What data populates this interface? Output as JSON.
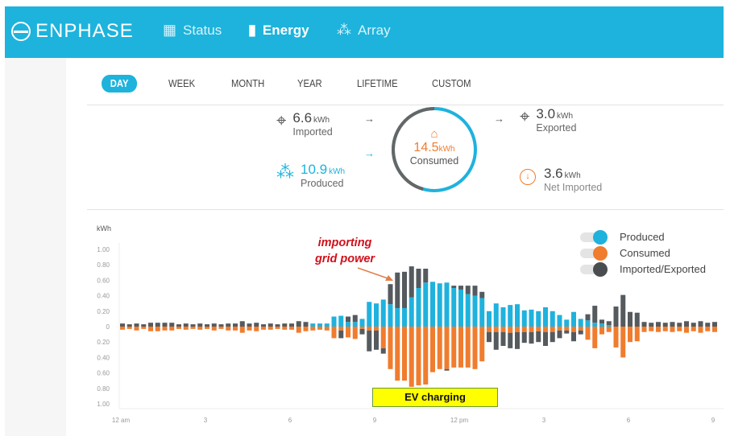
{
  "header": {
    "brand": "ENPHASE",
    "nav": [
      {
        "label": "Status",
        "icon": "grid-icon"
      },
      {
        "label": "Energy",
        "icon": "bar-chart-icon",
        "active": true
      },
      {
        "label": "Array",
        "icon": "panels-icon"
      }
    ]
  },
  "tabs": [
    {
      "label": "DAY",
      "active": true
    },
    {
      "label": "WEEK"
    },
    {
      "label": "MONTH"
    },
    {
      "label": "YEAR"
    },
    {
      "label": "LIFETIME"
    },
    {
      "label": "CUSTOM"
    }
  ],
  "summary": {
    "imported": {
      "value": "6.6",
      "unit": "kWh",
      "label": "Imported"
    },
    "produced": {
      "value": "10.9",
      "unit": "kWh",
      "label": "Produced"
    },
    "consumed": {
      "value": "14.5",
      "unit": "kWh",
      "label": "Consumed"
    },
    "exported": {
      "value": "3.0",
      "unit": "kWh",
      "label": "Exported"
    },
    "net": {
      "value": "3.6",
      "unit": "kWh",
      "label": "Net Imported"
    }
  },
  "colors": {
    "brand": "#1db3dc",
    "produced": "#1fb2dd",
    "consumed": "#f07c2e",
    "grid": "#555a5e",
    "annotation": "#d0101a",
    "highlight": "#ffff00"
  },
  "annotations": {
    "importing": "importing grid power",
    "ev": "EV charging"
  },
  "chart_data": {
    "type": "bar",
    "ylabel": "kWh",
    "ylim": [
      -1.0,
      1.0
    ],
    "y_ticks": [
      "1.00",
      "0.80",
      "0.60",
      "0.40",
      "0.20",
      "0",
      "0.20",
      "0.40",
      "0.60",
      "0.80",
      "1.00"
    ],
    "x_ticks": [
      "12 am",
      "3",
      "6",
      "9",
      "12 pm",
      "3",
      "6",
      "9"
    ],
    "interval": "15 min",
    "legend": {
      "placement": "top-right",
      "entries": [
        "Produced",
        "Consumed",
        "Imported/Exported"
      ]
    },
    "produced": [
      0,
      0,
      0,
      0,
      0,
      0,
      0,
      0,
      0,
      0,
      0,
      0,
      0,
      0,
      0,
      0,
      0,
      0,
      0,
      0,
      0,
      0,
      0,
      0,
      0,
      0,
      0,
      0.04,
      0.04,
      0.04,
      0.13,
      0.14,
      0.06,
      0.06,
      0.1,
      0.32,
      0.3,
      0.35,
      0.29,
      0.24,
      0.24,
      0.38,
      0.5,
      0.57,
      0.58,
      0.56,
      0.57,
      0.5,
      0.48,
      0.42,
      0.4,
      0.37,
      0.2,
      0.3,
      0.25,
      0.28,
      0.29,
      0.21,
      0.22,
      0.2,
      0.25,
      0.2,
      0.15,
      0.09,
      0.19,
      0.1,
      0.08,
      0.05,
      0.04,
      0.02,
      0,
      0,
      0,
      0,
      0,
      0,
      0,
      0,
      0,
      0,
      0,
      0,
      0,
      0,
      0
    ],
    "imported": [
      0.04,
      0.03,
      0.04,
      0.03,
      0.05,
      0.05,
      0.05,
      0.05,
      0.03,
      0.04,
      0.03,
      0.04,
      0.03,
      0.04,
      0.03,
      0.04,
      0.04,
      0.07,
      0.04,
      0.05,
      0.03,
      0.04,
      0.03,
      0.04,
      0.04,
      0.07,
      0.06,
      0,
      0,
      0,
      0,
      0,
      0.07,
      0.09,
      0,
      0,
      0,
      0,
      0.26,
      0.46,
      0.47,
      0.4,
      0.25,
      0.18,
      0,
      0,
      0,
      0.03,
      0.05,
      0.11,
      0.13,
      0.08,
      0,
      0,
      0,
      0,
      0,
      0,
      0,
      0,
      0,
      0,
      0,
      0,
      0,
      0,
      0.08,
      0.22,
      0.05,
      0.05,
      0.26,
      0.41,
      0.19,
      0.18,
      0.06,
      0.05,
      0.06,
      0.05,
      0.06,
      0.05,
      0.07,
      0.05,
      0.07,
      0.05,
      0.06
    ],
    "consumed": [
      0.04,
      0.03,
      0.05,
      0.03,
      0.06,
      0.06,
      0.05,
      0.05,
      0.03,
      0.04,
      0.03,
      0.04,
      0.03,
      0.05,
      0.03,
      0.05,
      0.05,
      0.08,
      0.05,
      0.06,
      0.04,
      0.04,
      0.03,
      0.04,
      0.04,
      0.08,
      0.06,
      0.05,
      0.04,
      0.05,
      0.15,
      0.05,
      0.14,
      0.16,
      0.03,
      0.05,
      0.05,
      0.28,
      0.55,
      0.7,
      0.7,
      0.78,
      0.76,
      0.75,
      0.59,
      0.55,
      0.55,
      0.53,
      0.53,
      0.53,
      0.55,
      0.45,
      0.07,
      0.07,
      0.07,
      0.08,
      0.07,
      0.07,
      0.07,
      0.06,
      0.07,
      0.07,
      0.05,
      0.05,
      0.07,
      0.05,
      0.17,
      0.28,
      0.1,
      0.07,
      0.27,
      0.4,
      0.2,
      0.19,
      0.07,
      0.06,
      0.07,
      0.06,
      0.07,
      0.06,
      0.08,
      0.06,
      0.08,
      0.06,
      0.07
    ],
    "exported": [
      0,
      0,
      0,
      0,
      0,
      0,
      0,
      0,
      0,
      0,
      0,
      0,
      0,
      0,
      0,
      0,
      0,
      0,
      0,
      0,
      0,
      0,
      0,
      0,
      0,
      0,
      0,
      0,
      0,
      0,
      0,
      0.1,
      0,
      0,
      0.07,
      0.27,
      0.25,
      0.07,
      0,
      0,
      0,
      0,
      0,
      0,
      0,
      0,
      0.02,
      0,
      0,
      0,
      0,
      0,
      0.13,
      0.23,
      0.18,
      0.2,
      0.22,
      0.14,
      0.15,
      0.14,
      0.18,
      0.13,
      0.1,
      0.04,
      0.12,
      0.05,
      0,
      0,
      0,
      0,
      0,
      0,
      0,
      0,
      0,
      0,
      0,
      0,
      0,
      0,
      0,
      0,
      0,
      0,
      0
    ]
  }
}
